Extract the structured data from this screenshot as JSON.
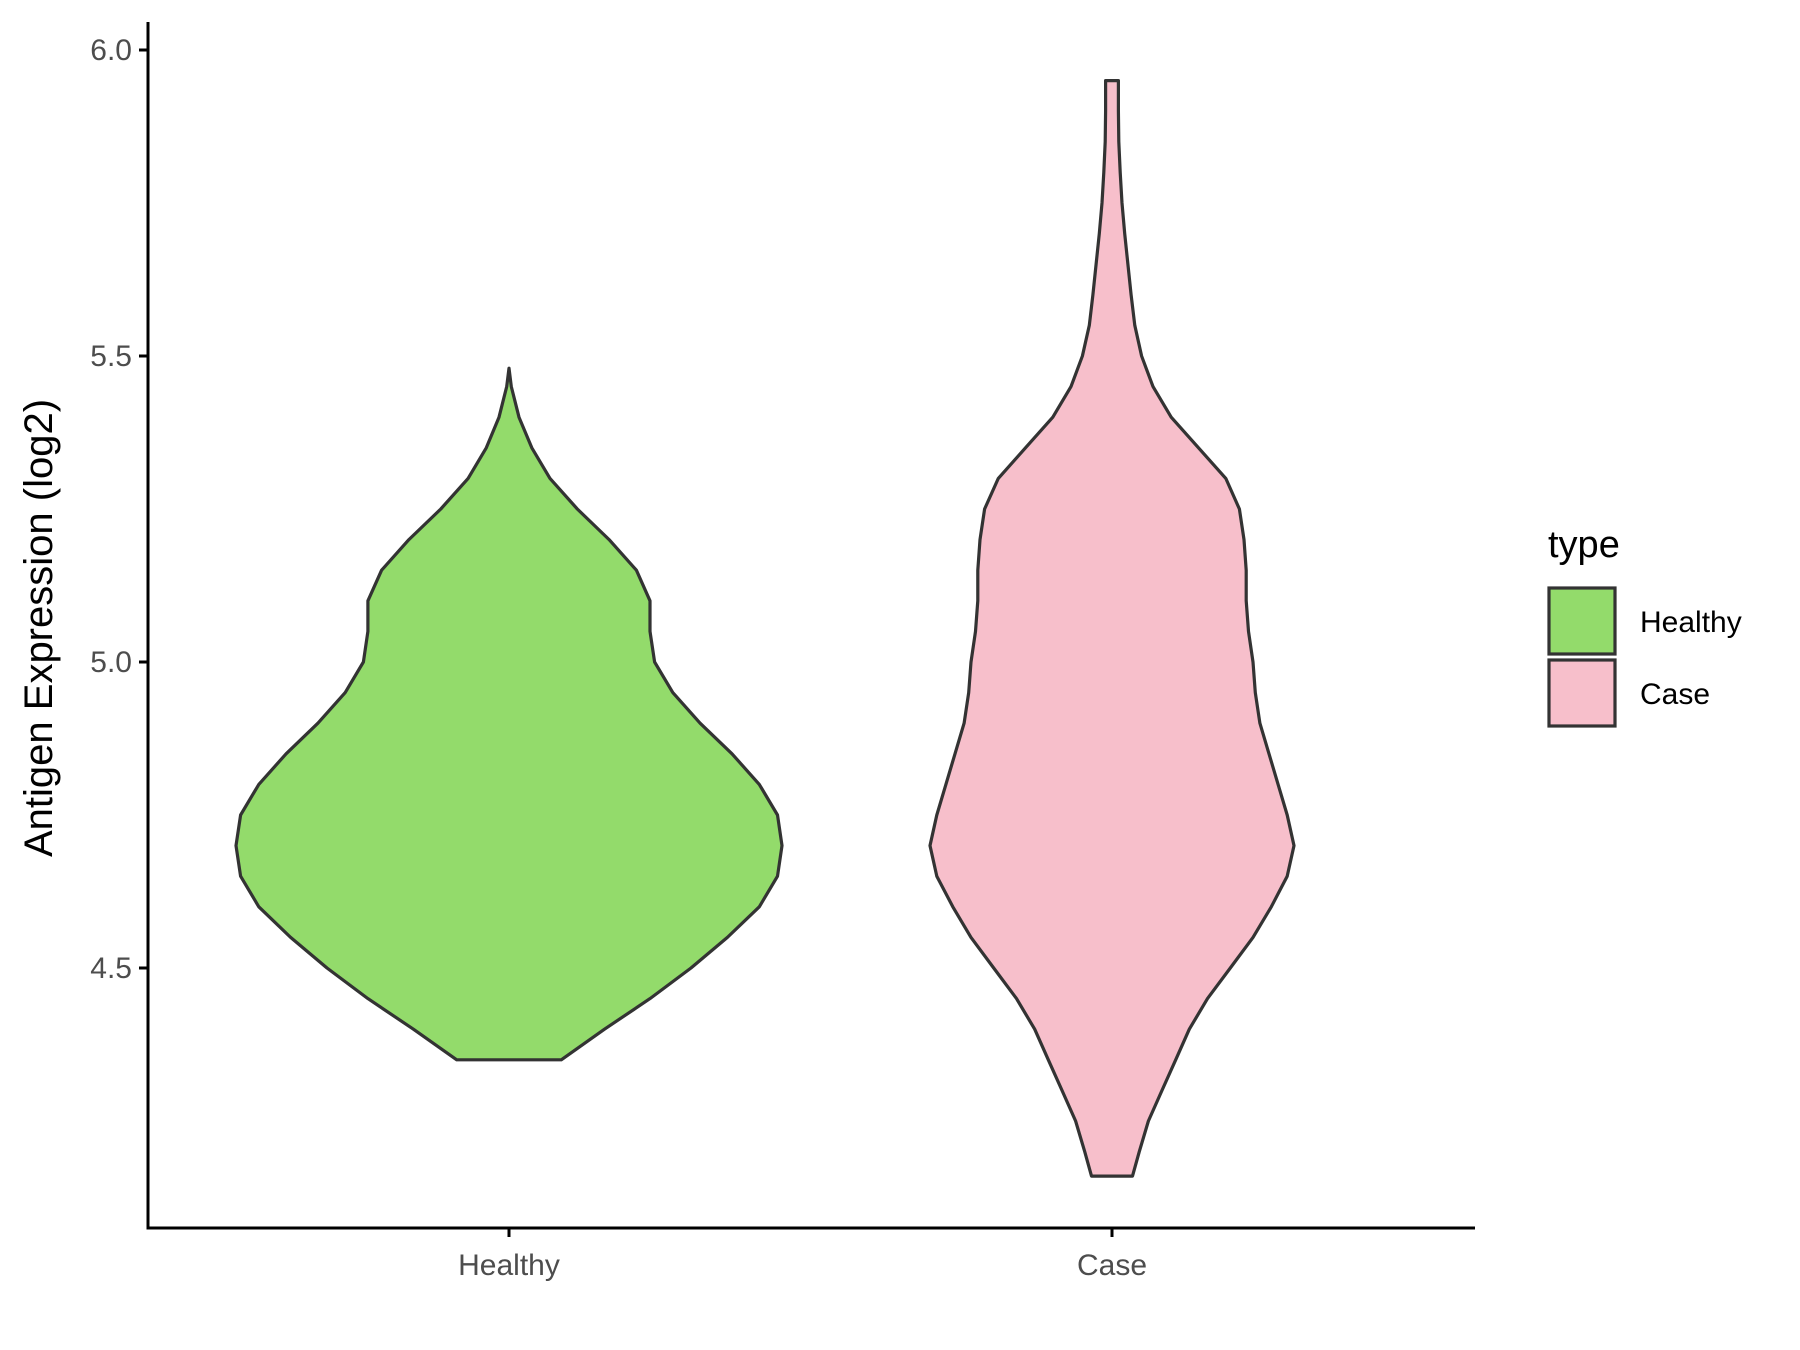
{
  "chart_data": {
    "type": "violin",
    "xlabel": "",
    "ylabel": "Antigen Expression (log2)",
    "ylim": [
      4.05,
      6.04
    ],
    "yticks": [
      "4.5",
      "5.0",
      "5.5",
      "6.0"
    ],
    "categories": [
      "Healthy",
      "Case"
    ],
    "grid": false,
    "legend": {
      "title": "type",
      "position": "right",
      "entries": [
        {
          "label": "Healthy",
          "color": "#93DB6B"
        },
        {
          "label": "Case",
          "color": "#F7BFCB"
        }
      ]
    },
    "series": [
      {
        "category": "Healthy",
        "color": "#93DB6B",
        "y_min": 4.35,
        "y_max": 5.48,
        "density_profile": [
          [
            4.35,
            0.115
          ],
          [
            4.4,
            0.21
          ],
          [
            4.45,
            0.31
          ],
          [
            4.5,
            0.4
          ],
          [
            4.55,
            0.48
          ],
          [
            4.6,
            0.55
          ],
          [
            4.65,
            0.59
          ],
          [
            4.7,
            0.6
          ],
          [
            4.75,
            0.59
          ],
          [
            4.8,
            0.55
          ],
          [
            4.85,
            0.49
          ],
          [
            4.9,
            0.42
          ],
          [
            4.95,
            0.36
          ],
          [
            5.0,
            0.32
          ],
          [
            5.05,
            0.31
          ],
          [
            5.1,
            0.31
          ],
          [
            5.15,
            0.28
          ],
          [
            5.2,
            0.22
          ],
          [
            5.25,
            0.15
          ],
          [
            5.3,
            0.09
          ],
          [
            5.35,
            0.05
          ],
          [
            5.4,
            0.022
          ],
          [
            5.45,
            0.005
          ],
          [
            5.48,
            0.0
          ]
        ]
      },
      {
        "category": "Case",
        "color": "#F7BFCB",
        "y_min": 4.16,
        "y_max": 5.95,
        "density_profile": [
          [
            4.16,
            0.045
          ],
          [
            4.2,
            0.06
          ],
          [
            4.25,
            0.08
          ],
          [
            4.3,
            0.11
          ],
          [
            4.35,
            0.14
          ],
          [
            4.4,
            0.17
          ],
          [
            4.45,
            0.21
          ],
          [
            4.5,
            0.26
          ],
          [
            4.55,
            0.31
          ],
          [
            4.6,
            0.35
          ],
          [
            4.65,
            0.385
          ],
          [
            4.7,
            0.4
          ],
          [
            4.75,
            0.385
          ],
          [
            4.8,
            0.365
          ],
          [
            4.85,
            0.345
          ],
          [
            4.9,
            0.325
          ],
          [
            4.95,
            0.315
          ],
          [
            5.0,
            0.31
          ],
          [
            5.05,
            0.3
          ],
          [
            5.1,
            0.295
          ],
          [
            5.15,
            0.295
          ],
          [
            5.2,
            0.29
          ],
          [
            5.25,
            0.28
          ],
          [
            5.3,
            0.25
          ],
          [
            5.35,
            0.19
          ],
          [
            5.4,
            0.13
          ],
          [
            5.45,
            0.09
          ],
          [
            5.5,
            0.065
          ],
          [
            5.55,
            0.05
          ],
          [
            5.6,
            0.042
          ],
          [
            5.65,
            0.035
          ],
          [
            5.7,
            0.028
          ],
          [
            5.75,
            0.022
          ],
          [
            5.8,
            0.018
          ],
          [
            5.85,
            0.015
          ],
          [
            5.9,
            0.014
          ],
          [
            5.95,
            0.014
          ]
        ]
      }
    ]
  }
}
